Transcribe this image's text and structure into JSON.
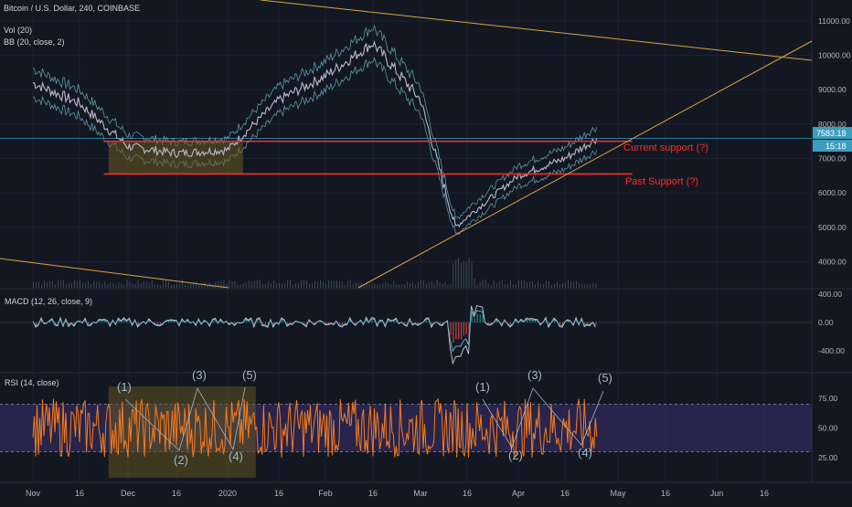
{
  "header": {
    "title": "Bitcoin / U.S. Dollar, 240, COINBASE",
    "indicators": [
      "Vol (20)",
      "BB (20, close, 2)"
    ]
  },
  "colors": {
    "background": "#131722",
    "price": "#b7bcc9",
    "bollinger": "#5b97a8",
    "support": "#ff2b2b",
    "trendline": "#d9a441",
    "macd": "#c8ccd6",
    "signal": "#6fb3c9",
    "rsi": "#f57c1e",
    "rsi_band": "#3b2f6e",
    "box": "#8a6d2a",
    "price_badge": "#3d9dbd",
    "label_text": "#ff2b2b",
    "axis_text": "#b2b5be"
  },
  "annotations": {
    "current_support": "Current support (?)",
    "past_support": "Past Support (?)",
    "price_badge": "7583.18",
    "timer_badge": "15:18"
  },
  "chart_data": [
    {
      "type": "line",
      "panel": "price",
      "series": [
        {
          "name": "",
          "x": [
            "Nov 1",
            "Nov 16",
            "Dec 1",
            "Dec 16",
            "Jan 1",
            "Jan 16",
            "Feb 1",
            "Feb 14",
            "Mar 1",
            "Mar 12",
            "Mar 16",
            "Apr 1",
            "Apr 16",
            "Apr 26"
          ],
          "y": [
            9200,
            8600,
            7350,
            7150,
            7250,
            8700,
            9400,
            10350,
            8700,
            5000,
            5300,
            6500,
            7000,
            7580
          ]
        }
      ],
      "yticks": [
        "11000.00",
        "10000.00",
        "9000.00",
        "8000.00",
        "7000.00",
        "6000.00",
        "5000.00",
        "4000.00"
      ],
      "ylim": [
        3400,
        11500
      ],
      "grid": true,
      "horizontal_lines": [
        7500,
        6550
      ],
      "last_price": 7583.18
    },
    {
      "type": "line",
      "panel": "macd",
      "title": "MACD (12, 26, close, 9)",
      "yticks": [
        "400.00",
        "0.00",
        "-400.00"
      ],
      "ylim": [
        -700,
        450
      ]
    },
    {
      "type": "line",
      "panel": "rsi",
      "title": "RSI (14, close)",
      "yticks": [
        "75.00",
        "50.00",
        "25.00"
      ],
      "ylim": [
        5,
        95
      ],
      "bands": [
        30,
        70
      ],
      "wave_labels": [
        "(1)",
        "(2)",
        "(3)",
        "(4)",
        "(5)",
        "(1)",
        "(2)",
        "(3)",
        "(4)",
        "(5)"
      ]
    }
  ],
  "x_axis": {
    "ticks": [
      "Nov",
      "16",
      "Dec",
      "16",
      "2020",
      "16",
      "Feb",
      "16",
      "Mar",
      "16",
      "Apr",
      "16",
      "May",
      "16",
      "Jun",
      "16"
    ]
  }
}
